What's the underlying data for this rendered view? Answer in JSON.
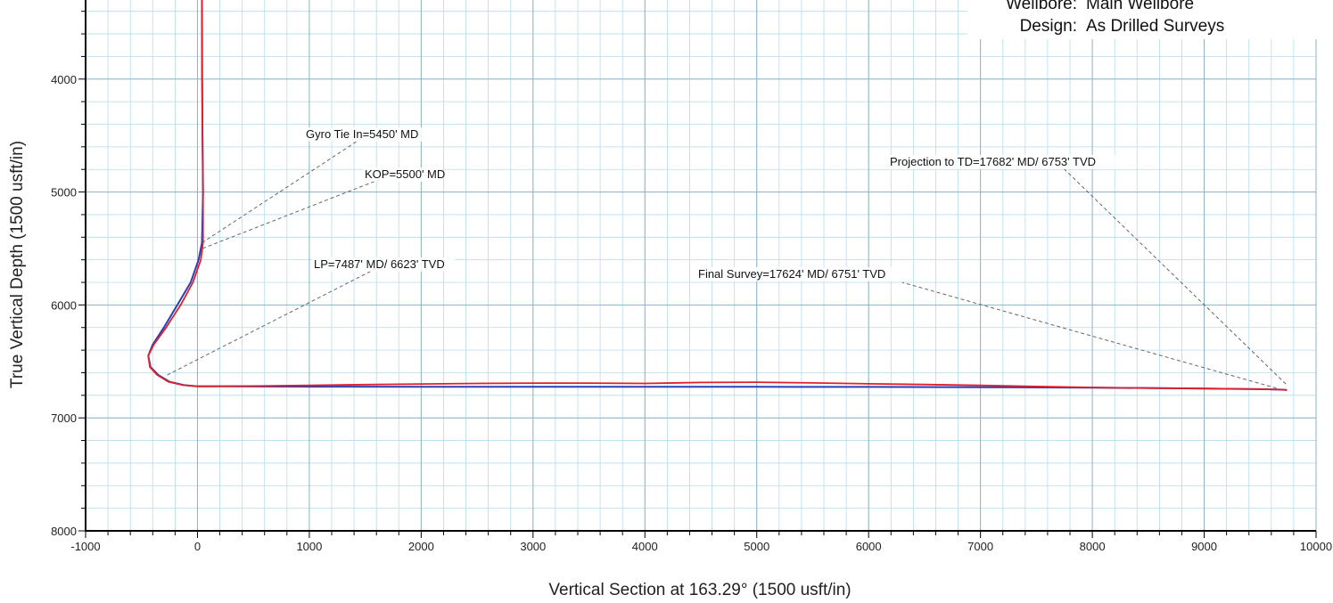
{
  "header": {
    "wellbore_label": "Wellbore:",
    "wellbore_value": "Main Wellbore",
    "design_label": "Design:",
    "design_value": "As Drilled Surveys"
  },
  "colors": {
    "grid_major": "#8fb2c4",
    "grid_minor": "#b5dcec",
    "actual": "#e0202a",
    "plan": "#2b3fb5",
    "leader": "#666666",
    "axis": "#000000"
  },
  "chart_data": {
    "type": "line",
    "title": "",
    "xlabel": "Vertical Section at 163.29° (1500 usft/in)",
    "ylabel": "True Vertical Depth (1500 usft/in)",
    "xlim": [
      -1000,
      10000
    ],
    "ylim": [
      8000,
      3300
    ],
    "y_inverted": true,
    "grid": true,
    "x_ticks": [
      -1000,
      0,
      1000,
      2000,
      3000,
      4000,
      5000,
      6000,
      7000,
      8000,
      9000,
      10000
    ],
    "y_ticks": [
      4000,
      5000,
      6000,
      7000,
      8000
    ],
    "series": [
      {
        "name": "",
        "color": "#2b3fb5",
        "x": [
          40,
          42,
          45,
          50,
          40,
          10,
          -60,
          -180,
          -300,
          -400,
          -440,
          -420,
          -350,
          -250,
          -120,
          0,
          500,
          1000,
          2000,
          3000,
          4000,
          5000,
          6000,
          7000,
          8000,
          9000,
          9500,
          9700,
          9740
        ],
        "y": [
          3300,
          4000,
          4500,
          5000,
          5450,
          5600,
          5800,
          6000,
          6200,
          6350,
          6450,
          6550,
          6620,
          6680,
          6710,
          6720,
          6722,
          6723,
          6724,
          6724,
          6725,
          6725,
          6726,
          6728,
          6732,
          6740,
          6745,
          6750,
          6753
        ]
      },
      {
        "name": "",
        "color": "#e0202a",
        "x": [
          40,
          42,
          45,
          50,
          50,
          30,
          -40,
          -150,
          -280,
          -390,
          -440,
          -425,
          -360,
          -260,
          -130,
          0,
          500,
          1000,
          1500,
          2000,
          2500,
          3000,
          3500,
          4000,
          4500,
          5000,
          5500,
          6000,
          6500,
          7000,
          7500,
          8000,
          8500,
          9000,
          9500,
          9700,
          9740
        ],
        "y": [
          3300,
          4000,
          4500,
          5000,
          5450,
          5600,
          5800,
          6000,
          6200,
          6350,
          6450,
          6550,
          6620,
          6680,
          6710,
          6720,
          6718,
          6712,
          6705,
          6700,
          6695,
          6692,
          6692,
          6695,
          6686,
          6684,
          6690,
          6698,
          6704,
          6712,
          6722,
          6730,
          6736,
          6740,
          6745,
          6750,
          6753
        ]
      }
    ],
    "annotations": [
      {
        "name": "gyro-tie-in",
        "text": "Gyro Tie In=5450' MD",
        "anchor": [
          40,
          5450
        ],
        "label": [
          1520,
          4490
        ]
      },
      {
        "name": "kop",
        "text": "KOP=5500' MD",
        "anchor": [
          45,
          5500
        ],
        "label": [
          1780,
          4830
        ]
      },
      {
        "name": "lp",
        "text": "LP=7487' MD/ 6623' TVD",
        "anchor": [
          -270,
          6620
        ],
        "label": [
          1750,
          5600
        ]
      },
      {
        "name": "final-survey",
        "text": "Final Survey=17624' MD/ 6751' TVD",
        "anchor": [
          9700,
          6752
        ],
        "label": [
          6300,
          5800
        ]
      },
      {
        "name": "projection-td",
        "text": "Projection to TD=17682' MD/ 6753' TVD",
        "anchor": [
          9730,
          6700
        ],
        "label": [
          7700,
          4750
        ]
      }
    ]
  }
}
